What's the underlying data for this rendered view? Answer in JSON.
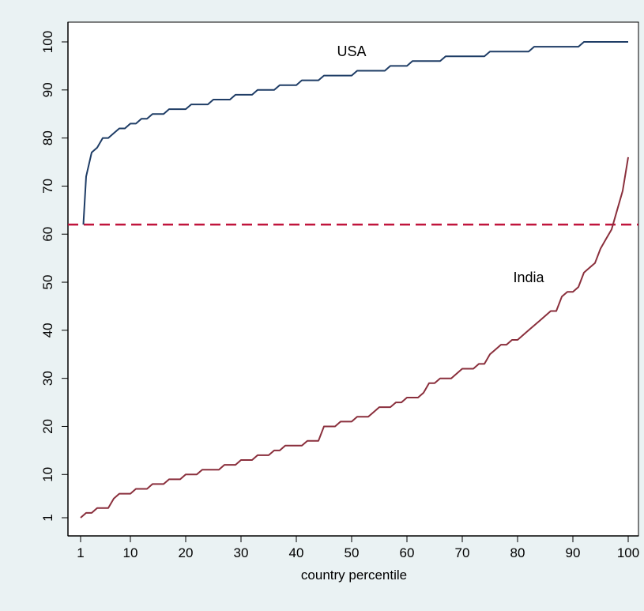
{
  "chart_data": {
    "type": "line",
    "title": "",
    "xlabel": "country percentile",
    "ylabel": "",
    "xlim": [
      1,
      100
    ],
    "ylim": [
      1,
      100
    ],
    "x_ticks": [
      1,
      10,
      20,
      30,
      40,
      50,
      60,
      70,
      80,
      90,
      100
    ],
    "y_ticks": [
      1,
      10,
      20,
      30,
      40,
      50,
      60,
      70,
      80,
      90,
      100
    ],
    "grid": false,
    "legend": "none",
    "reference_line": {
      "y": 62,
      "style": "dashed",
      "color": "#c0143c"
    },
    "series": [
      {
        "name": "USA",
        "color": "#1f3d66",
        "label_at": [
          50,
          97
        ],
        "points": [
          [
            1.5,
            62
          ],
          [
            2,
            72
          ],
          [
            3,
            77
          ],
          [
            4,
            78
          ],
          [
            5,
            80
          ],
          [
            6,
            80
          ],
          [
            7,
            81
          ],
          [
            8,
            82
          ],
          [
            9,
            82
          ],
          [
            10,
            83
          ],
          [
            11,
            83
          ],
          [
            12,
            84
          ],
          [
            13,
            84
          ],
          [
            14,
            85
          ],
          [
            15,
            85
          ],
          [
            16,
            85
          ],
          [
            17,
            86
          ],
          [
            20,
            86
          ],
          [
            21,
            87
          ],
          [
            24,
            87
          ],
          [
            25,
            88
          ],
          [
            28,
            88
          ],
          [
            29,
            89
          ],
          [
            32,
            89
          ],
          [
            33,
            90
          ],
          [
            36,
            90
          ],
          [
            37,
            91
          ],
          [
            40,
            91
          ],
          [
            41,
            92
          ],
          [
            44,
            92
          ],
          [
            45,
            93
          ],
          [
            50,
            93
          ],
          [
            51,
            94
          ],
          [
            56,
            94
          ],
          [
            57,
            95
          ],
          [
            60,
            95
          ],
          [
            61,
            96
          ],
          [
            66,
            96
          ],
          [
            67,
            97
          ],
          [
            74,
            97
          ],
          [
            75,
            98
          ],
          [
            82,
            98
          ],
          [
            83,
            99
          ],
          [
            91,
            99
          ],
          [
            92,
            100
          ],
          [
            100,
            100
          ]
        ]
      },
      {
        "name": "India",
        "color": "#8a2f3c",
        "label_at": [
          82,
          50
        ],
        "points": [
          [
            1,
            1
          ],
          [
            2,
            2
          ],
          [
            3,
            2
          ],
          [
            4,
            3
          ],
          [
            6,
            3
          ],
          [
            7,
            5
          ],
          [
            8,
            6
          ],
          [
            10,
            6
          ],
          [
            11,
            7
          ],
          [
            13,
            7
          ],
          [
            14,
            8
          ],
          [
            16,
            8
          ],
          [
            17,
            9
          ],
          [
            19,
            9
          ],
          [
            20,
            10
          ],
          [
            22,
            10
          ],
          [
            23,
            11
          ],
          [
            26,
            11
          ],
          [
            27,
            12
          ],
          [
            29,
            12
          ],
          [
            30,
            13
          ],
          [
            32,
            13
          ],
          [
            33,
            14
          ],
          [
            35,
            14
          ],
          [
            36,
            15
          ],
          [
            37,
            15
          ],
          [
            38,
            16
          ],
          [
            41,
            16
          ],
          [
            42,
            17
          ],
          [
            44,
            17
          ],
          [
            45,
            20
          ],
          [
            47,
            20
          ],
          [
            48,
            21
          ],
          [
            50,
            21
          ],
          [
            51,
            22
          ],
          [
            53,
            22
          ],
          [
            54,
            23
          ],
          [
            55,
            24
          ],
          [
            57,
            24
          ],
          [
            58,
            25
          ],
          [
            59,
            25
          ],
          [
            60,
            26
          ],
          [
            62,
            26
          ],
          [
            63,
            27
          ],
          [
            64,
            29
          ],
          [
            65,
            29
          ],
          [
            66,
            30
          ],
          [
            68,
            30
          ],
          [
            69,
            31
          ],
          [
            70,
            32
          ],
          [
            72,
            32
          ],
          [
            73,
            33
          ],
          [
            74,
            33
          ],
          [
            75,
            35
          ],
          [
            76,
            36
          ],
          [
            77,
            37
          ],
          [
            78,
            37
          ],
          [
            79,
            38
          ],
          [
            80,
            38
          ],
          [
            82,
            40
          ],
          [
            84,
            42
          ],
          [
            86,
            44
          ],
          [
            87,
            44
          ],
          [
            88,
            47
          ],
          [
            89,
            48
          ],
          [
            90,
            48
          ],
          [
            91,
            49
          ],
          [
            92,
            52
          ],
          [
            93,
            53
          ],
          [
            94,
            54
          ],
          [
            95,
            57
          ],
          [
            96,
            59
          ],
          [
            97,
            61
          ],
          [
            98,
            65
          ],
          [
            99,
            69
          ],
          [
            100,
            76
          ]
        ]
      }
    ]
  }
}
